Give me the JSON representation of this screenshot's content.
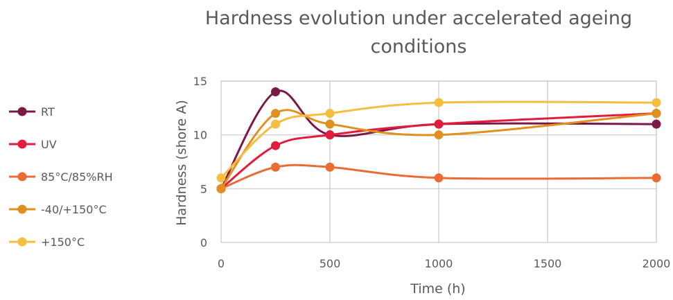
{
  "chart_data": {
    "type": "line",
    "title_line1": "Hardness evolution under accelerated ageing",
    "title_line2": "conditions",
    "xlabel": "Time (h)",
    "ylabel": "Hardness (shore A)",
    "xlim": [
      0,
      2000
    ],
    "ylim": [
      0,
      15
    ],
    "xticks": [
      0,
      500,
      1000,
      1500,
      2000
    ],
    "yticks": [
      0,
      5,
      10,
      15
    ],
    "grid": true,
    "smooth": true,
    "legend_position": "left",
    "series": [
      {
        "name": "RT",
        "color": "#7b1846",
        "points": [
          [
            0,
            5
          ],
          [
            250,
            14
          ],
          [
            500,
            10
          ],
          [
            1000,
            11
          ],
          [
            2000,
            11
          ]
        ]
      },
      {
        "name": "UV",
        "color": "#e31b3c",
        "points": [
          [
            0,
            5
          ],
          [
            250,
            9
          ],
          [
            500,
            10
          ],
          [
            1000,
            11
          ],
          [
            2000,
            12
          ]
        ]
      },
      {
        "name": "85°C/85%RH",
        "color": "#eb6b34",
        "points": [
          [
            0,
            5
          ],
          [
            250,
            7
          ],
          [
            500,
            7
          ],
          [
            1000,
            6
          ],
          [
            2000,
            6
          ]
        ]
      },
      {
        "name": "-40/+150°C",
        "color": "#e1901e",
        "points": [
          [
            0,
            5
          ],
          [
            250,
            12
          ],
          [
            500,
            11
          ],
          [
            1000,
            10
          ],
          [
            2000,
            12
          ]
        ]
      },
      {
        "name": "+150°C",
        "color": "#f6be3e",
        "points": [
          [
            0,
            6
          ],
          [
            250,
            11
          ],
          [
            500,
            12
          ],
          [
            1000,
            13
          ],
          [
            2000,
            13
          ]
        ]
      }
    ]
  }
}
